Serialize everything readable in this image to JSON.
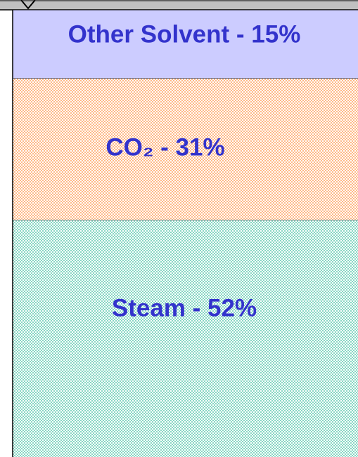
{
  "chart_data": {
    "type": "bar",
    "series": [
      {
        "name": "Steam",
        "color": "#33bb99",
        "values": [
          52
        ],
        "value_labels": [
          "Steam - 52%"
        ]
      },
      {
        "name": "CO₂",
        "color": "#ff8833",
        "values": [
          31
        ],
        "value_labels": [
          "CO₂  - 31%"
        ]
      },
      {
        "name": "Other Solvent",
        "color": "#ccccff",
        "values": [
          15
        ],
        "value_labels": [
          "Other Solvent - 15%"
        ]
      }
    ]
  }
}
